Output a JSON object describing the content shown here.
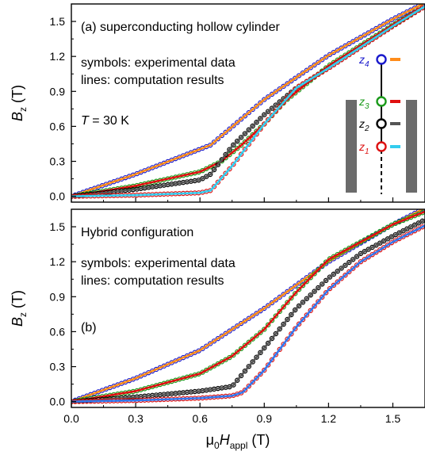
{
  "chart_data": [
    {
      "panel_label": "(a)",
      "type": "line",
      "title": "superconducting hollow cylinder",
      "annotations": [
        "symbols: experimental data",
        "lines: computation results"
      ],
      "temperature": {
        "prefix": "T",
        "suffix": " = 30 K"
      },
      "ylabel": {
        "main": "B",
        "sub": "z",
        "unit": " (T)"
      },
      "xlim": [
        0,
        1.65
      ],
      "ylim": [
        -0.05,
        1.65
      ],
      "yticks": [
        "0.0",
        "0.3",
        "0.6",
        "0.9",
        "1.2",
        "1.5"
      ],
      "inset": {
        "labels": [
          {
            "name": "z",
            "sub": "4",
            "color": "#1a1acc",
            "line_color": "#ff8c1a"
          },
          {
            "name": "z",
            "sub": "3",
            "color": "#1a9a1a",
            "line_color": "#e01010"
          },
          {
            "name": "z",
            "sub": "2",
            "color": "#000000",
            "line_color": "#555555"
          },
          {
            "name": "z",
            "sub": "1",
            "color": "#dd1111",
            "line_color": "#33ccee"
          }
        ]
      },
      "series": [
        {
          "marker_color": "#1a1acc",
          "line_color": "#ff8c1a",
          "x": [
            0,
            0.3,
            0.65,
            0.9,
            1.2,
            1.5,
            1.65
          ],
          "y": [
            0,
            0.19,
            0.44,
            0.83,
            1.21,
            1.52,
            1.66
          ]
        },
        {
          "marker_color": "#1a9a1a",
          "line_color": "#e01010",
          "x": [
            0,
            0.3,
            0.6,
            0.7,
            0.8,
            0.9,
            1.0,
            1.2,
            1.5,
            1.65
          ],
          "y": [
            0,
            0.09,
            0.21,
            0.3,
            0.45,
            0.62,
            0.82,
            1.12,
            1.47,
            1.63
          ]
        },
        {
          "marker_color": "#000000",
          "line_color": "#555555",
          "x": [
            0,
            0.3,
            0.6,
            0.65,
            0.75,
            0.9,
            1.05,
            1.2,
            1.5,
            1.65
          ],
          "y": [
            0,
            0.06,
            0.14,
            0.19,
            0.43,
            0.7,
            0.93,
            1.1,
            1.46,
            1.63
          ]
        },
        {
          "marker_color": "#dd1111",
          "line_color": "#33ccee",
          "x": [
            0,
            0.3,
            0.6,
            0.65,
            0.75,
            0.9,
            1.05,
            1.2,
            1.5,
            1.65
          ],
          "y": [
            0,
            0.01,
            0.03,
            0.05,
            0.26,
            0.62,
            0.93,
            1.1,
            1.46,
            1.63
          ]
        }
      ]
    },
    {
      "panel_label": "(b)",
      "type": "line",
      "title": "Hybrid configuration",
      "annotations": [
        "symbols: experimental data",
        "lines: computation results"
      ],
      "ylabel": {
        "main": "B",
        "sub": "z",
        "unit": " (T)"
      },
      "xlabel": {
        "main": "μ",
        "sub0": "0",
        "main2": "H",
        "sub": "appl",
        "unit": " (T)"
      },
      "xlim": [
        0,
        1.65
      ],
      "ylim": [
        -0.05,
        1.65
      ],
      "xticks": [
        "0.0",
        "0.3",
        "0.6",
        "0.9",
        "1.2",
        "1.5"
      ],
      "yticks": [
        "0.0",
        "0.3",
        "0.6",
        "0.9",
        "1.2",
        "1.5"
      ],
      "series": [
        {
          "marker_color": "#1a1acc",
          "line_color": "#ff8c1a",
          "x": [
            0,
            0.3,
            0.6,
            0.9,
            1.2,
            1.5,
            1.65
          ],
          "y": [
            0,
            0.2,
            0.44,
            0.8,
            1.2,
            1.52,
            1.66
          ]
        },
        {
          "marker_color": "#1a9a1a",
          "line_color": "#e01010",
          "x": [
            0,
            0.3,
            0.6,
            0.75,
            0.9,
            1.05,
            1.2,
            1.5,
            1.65
          ],
          "y": [
            0,
            0.09,
            0.24,
            0.39,
            0.62,
            0.94,
            1.22,
            1.52,
            1.63
          ]
        },
        {
          "marker_color": "#000000",
          "line_color": "#555555",
          "x": [
            0,
            0.3,
            0.6,
            0.75,
            0.8,
            0.9,
            1.05,
            1.2,
            1.35,
            1.5,
            1.65
          ],
          "y": [
            0,
            0.04,
            0.09,
            0.13,
            0.24,
            0.46,
            0.8,
            1.06,
            1.27,
            1.42,
            1.56
          ]
        },
        {
          "marker_color": "#dd1111",
          "line_color": "#3377ee",
          "x": [
            0,
            0.3,
            0.6,
            0.75,
            0.8,
            0.9,
            1.05,
            1.2,
            1.35,
            1.5,
            1.65
          ],
          "y": [
            0,
            0.01,
            0.03,
            0.05,
            0.08,
            0.27,
            0.64,
            0.96,
            1.2,
            1.37,
            1.51
          ]
        }
      ]
    }
  ]
}
